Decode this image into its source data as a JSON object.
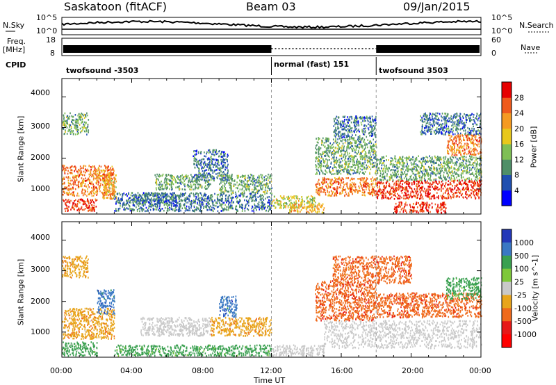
{
  "header": {
    "site": "Saskatoon (fitACF)",
    "beam": "Beam 03",
    "date": "09/Jan/2015"
  },
  "top_panels": {
    "nsky_label": "N.Sky",
    "nsky_ticks": [
      "10^5",
      "10^0"
    ],
    "nsearch_label": "N.Search",
    "nsearch_ticks": [
      "10^5",
      "10^0"
    ],
    "freq_label": "Freq.",
    "freq_unit": "[MHz]",
    "freq_ticks": [
      "18",
      "8"
    ],
    "nave_label": "Nave",
    "nave_ticks": [
      "60",
      "0"
    ],
    "cpid_label": "CPID",
    "cpid_segments": [
      {
        "label": "twofsound -3503",
        "start_hour": 0,
        "end_hour": 12
      },
      {
        "label": "normal (fast) 151",
        "start_hour": 12,
        "end_hour": 18
      },
      {
        "label": "twofsound 3503",
        "start_hour": 18,
        "end_hour": 24
      }
    ]
  },
  "colors": {
    "power": [
      "#0000ff",
      "#1f4fb0",
      "#4f8f68",
      "#7fbf55",
      "#e8c81c",
      "#f59a22",
      "#ef5a1c",
      "#e60000"
    ],
    "velocity": [
      "#2438b8",
      "#3a78c4",
      "#3aa050",
      "#7ec83a",
      "#c9c9c9",
      "#e8a51c",
      "#ef6a1c",
      "#e61818",
      "#ff0000"
    ]
  },
  "chart_data": [
    {
      "type": "heatmap",
      "title": "",
      "ylabel": "Slant Range [km]",
      "yticks": [
        "4000",
        "3000",
        "2000",
        "1000"
      ],
      "ylim": [
        180,
        4600
      ],
      "xlim": [
        0,
        24
      ],
      "colorbar_label": "Power [dB]",
      "colorbar_ticks": [
        "28",
        "24",
        "20",
        "16",
        "12",
        "8",
        "4"
      ],
      "regions": [
        {
          "x0": 0.0,
          "x1": 3.0,
          "y0": 800,
          "y1": 1800,
          "value": 24
        },
        {
          "x0": 0.0,
          "x1": 2.0,
          "y0": 300,
          "y1": 700,
          "value": 28
        },
        {
          "x0": 0.0,
          "x1": 1.5,
          "y0": 2800,
          "y1": 3500,
          "value": 12
        },
        {
          "x0": 2.3,
          "x1": 3.1,
          "y0": 700,
          "y1": 1500,
          "value": 20
        },
        {
          "x0": 3.0,
          "x1": 12.0,
          "y0": 300,
          "y1": 900,
          "value": 8
        },
        {
          "x0": 4.0,
          "x1": 6.5,
          "y0": 500,
          "y1": 900,
          "value": 8
        },
        {
          "x0": 5.3,
          "x1": 8.5,
          "y0": 1000,
          "y1": 1500,
          "value": 12
        },
        {
          "x0": 7.5,
          "x1": 9.5,
          "y0": 1300,
          "y1": 2300,
          "value": 8
        },
        {
          "x0": 9.0,
          "x1": 12.0,
          "y0": 900,
          "y1": 1500,
          "value": 12
        },
        {
          "x0": 12.0,
          "x1": 14.5,
          "y0": 400,
          "y1": 800,
          "value": 16
        },
        {
          "x0": 13.0,
          "x1": 15.0,
          "y0": 250,
          "y1": 550,
          "value": 20
        },
        {
          "x0": 14.5,
          "x1": 18.0,
          "y0": 800,
          "y1": 1400,
          "value": 24
        },
        {
          "x0": 14.5,
          "x1": 18.0,
          "y0": 1500,
          "y1": 2700,
          "value": 12
        },
        {
          "x0": 15.5,
          "x1": 18.0,
          "y0": 2700,
          "y1": 3400,
          "value": 8
        },
        {
          "x0": 18.0,
          "x1": 24.0,
          "y0": 700,
          "y1": 1300,
          "value": 28
        },
        {
          "x0": 18.0,
          "x1": 24.0,
          "y0": 1300,
          "y1": 2100,
          "value": 12
        },
        {
          "x0": 19.0,
          "x1": 22.0,
          "y0": 250,
          "y1": 600,
          "value": 28
        },
        {
          "x0": 22.0,
          "x1": 24.0,
          "y0": 2100,
          "y1": 2800,
          "value": 24
        },
        {
          "x0": 20.5,
          "x1": 24.0,
          "y0": 2800,
          "y1": 3500,
          "value": 8
        }
      ]
    },
    {
      "type": "heatmap",
      "title": "",
      "ylabel": "Slant Range [km]",
      "yticks": [
        "4000",
        "3000",
        "2000",
        "1000"
      ],
      "ylim": [
        180,
        4600
      ],
      "xlim": [
        0,
        24
      ],
      "xlabel": "Time UT",
      "xticks": [
        "00:00",
        "04:00",
        "08:00",
        "12:00",
        "16:00",
        "20:00",
        "00:00"
      ],
      "colorbar_label": "Velocity [m s^-1]",
      "colorbar_ticks": [
        "1000",
        "500",
        "100",
        "25",
        "-25",
        "-100",
        "-500",
        "-1000"
      ],
      "regions": [
        {
          "x0": 0.0,
          "x1": 3.0,
          "y0": 800,
          "y1": 1800,
          "value": -100
        },
        {
          "x0": 0.0,
          "x1": 2.0,
          "y0": 250,
          "y1": 700,
          "value": 100
        },
        {
          "x0": 0.0,
          "x1": 1.5,
          "y0": 2800,
          "y1": 3500,
          "value": -100
        },
        {
          "x0": 2.0,
          "x1": 3.0,
          "y0": 1600,
          "y1": 2400,
          "value": 500
        },
        {
          "x0": 3.0,
          "x1": 12.0,
          "y0": 250,
          "y1": 600,
          "value": 100
        },
        {
          "x0": 4.5,
          "x1": 8.5,
          "y0": 900,
          "y1": 1500,
          "value": 0
        },
        {
          "x0": 8.5,
          "x1": 12.0,
          "y0": 900,
          "y1": 1500,
          "value": -100
        },
        {
          "x0": 9.0,
          "x1": 10.0,
          "y0": 1500,
          "y1": 2200,
          "value": 500
        },
        {
          "x0": 12.0,
          "x1": 15.0,
          "y0": 250,
          "y1": 600,
          "value": 0
        },
        {
          "x0": 14.5,
          "x1": 18.0,
          "y0": 1400,
          "y1": 2700,
          "value": -500
        },
        {
          "x0": 15.5,
          "x1": 18.0,
          "y0": 2700,
          "y1": 3500,
          "value": -500
        },
        {
          "x0": 15.0,
          "x1": 24.0,
          "y0": 500,
          "y1": 1400,
          "value": 0
        },
        {
          "x0": 18.0,
          "x1": 24.0,
          "y0": 1500,
          "y1": 2300,
          "value": -500
        },
        {
          "x0": 22.0,
          "x1": 24.0,
          "y0": 2100,
          "y1": 2800,
          "value": 100
        },
        {
          "x0": 18.0,
          "x1": 20.0,
          "y0": 2600,
          "y1": 3500,
          "value": -500
        }
      ]
    }
  ]
}
